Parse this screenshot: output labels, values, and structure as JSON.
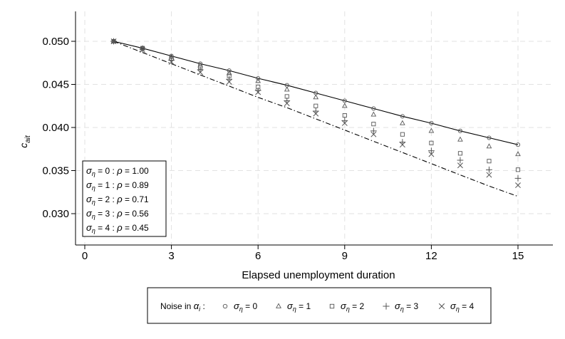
{
  "chart_data": {
    "type": "scatter",
    "xlabel": "Elapsed unemployment duration",
    "ylabel": {
      "base": "c",
      "sub": "ait"
    },
    "xlim": [
      0,
      16
    ],
    "ylim": [
      0.0268,
      0.0535
    ],
    "xticks": [
      0,
      3,
      6,
      9,
      12,
      15
    ],
    "xtick_labels": [
      "0",
      "3",
      "6",
      "9",
      "12",
      "15"
    ],
    "yticks": [
      0.03,
      0.035,
      0.04,
      0.045,
      0.05
    ],
    "ytick_labels": [
      "0.030",
      "0.035",
      "0.040",
      "0.045",
      "0.050"
    ],
    "grid": "dashed",
    "x": [
      1,
      2,
      3,
      4,
      5,
      6,
      7,
      8,
      9,
      10,
      11,
      12,
      13,
      14,
      15
    ],
    "lines": [
      {
        "style": "solid",
        "values": [
          0.05,
          0.0492,
          0.0483,
          0.0474,
          0.0466,
          0.0457,
          0.0449,
          0.044,
          0.0431,
          0.0422,
          0.0413,
          0.0405,
          0.0396,
          0.0388,
          0.038
        ]
      },
      {
        "style": "dashdot",
        "values": [
          0.05,
          0.0487,
          0.0474,
          0.0461,
          0.0448,
          0.0435,
          0.0423,
          0.041,
          0.0397,
          0.0384,
          0.0371,
          0.0358,
          0.0345,
          0.0332,
          0.032
        ]
      }
    ],
    "series": [
      {
        "name": "σ_η = 0",
        "marker": "circle",
        "values": [
          0.05,
          0.0492,
          0.0483,
          0.0474,
          0.0466,
          0.0457,
          0.0449,
          0.044,
          0.0431,
          0.0422,
          0.0413,
          0.0405,
          0.0396,
          0.0388,
          0.038
        ]
      },
      {
        "name": "σ_η = 1",
        "marker": "triangle",
        "values": [
          0.05,
          0.0492,
          0.0482,
          0.0472,
          0.0463,
          0.0454,
          0.0444,
          0.0435,
          0.0425,
          0.0415,
          0.0405,
          0.0396,
          0.0386,
          0.0378,
          0.0369
        ]
      },
      {
        "name": "σ_η = 2",
        "marker": "square",
        "values": [
          0.05,
          0.0492,
          0.048,
          0.047,
          0.046,
          0.0447,
          0.0436,
          0.0425,
          0.0414,
          0.0404,
          0.0392,
          0.0382,
          0.037,
          0.0361,
          0.0351
        ]
      },
      {
        "name": "σ_η = 3",
        "marker": "plus",
        "values": [
          0.05,
          0.0491,
          0.0478,
          0.0467,
          0.0456,
          0.0443,
          0.0431,
          0.0419,
          0.0408,
          0.0396,
          0.0383,
          0.0373,
          0.0362,
          0.0351,
          0.0341
        ]
      },
      {
        "name": "σ_η = 4",
        "marker": "x",
        "values": [
          0.05,
          0.049,
          0.0476,
          0.0464,
          0.0453,
          0.0441,
          0.0428,
          0.0416,
          0.0405,
          0.0392,
          0.038,
          0.0369,
          0.0356,
          0.0345,
          0.0333
        ]
      }
    ],
    "annotation_box": {
      "rows": [
        {
          "sigma": "0",
          "rho": "1.00"
        },
        {
          "sigma": "1",
          "rho": "0.89"
        },
        {
          "sigma": "2",
          "rho": "0.71"
        },
        {
          "sigma": "3",
          "rho": "0.56"
        },
        {
          "sigma": "4",
          "rho": "0.45"
        }
      ]
    },
    "legend": {
      "placement": "bottom",
      "title_pre": "Noise in ",
      "title_var": "α",
      "title_sub": "i",
      "title_post": " :",
      "items": [
        {
          "marker": "circle",
          "value": "0"
        },
        {
          "marker": "triangle",
          "value": "1"
        },
        {
          "marker": "square",
          "value": "2"
        },
        {
          "marker": "plus",
          "value": "3"
        },
        {
          "marker": "x",
          "value": "4"
        }
      ]
    }
  }
}
